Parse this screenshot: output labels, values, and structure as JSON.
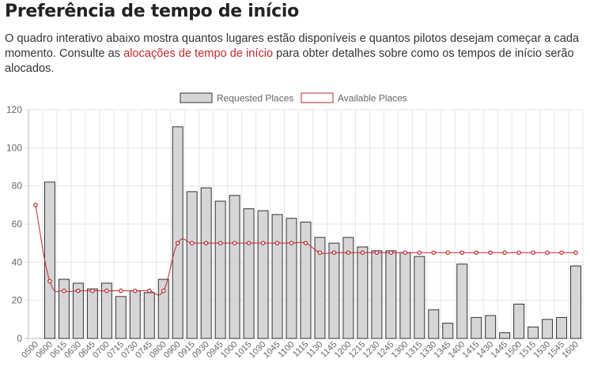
{
  "page": {
    "title": "Preferência de tempo de início",
    "intro_before": "O quadro interativo abaixo mostra quantos lugares estão disponíveis e quantos pilotos desejam começar a cada momento. Consulte as ",
    "intro_link": "alocações de tempo de início",
    "intro_after": " para obter detalhes sobre como os tempos de início serão alocados."
  },
  "colors": {
    "requested_fill": "#d6d6d8",
    "requested_stroke": "#333333",
    "available_line": "#c1272d",
    "grid": "#e6e6e6",
    "link": "#c1272d"
  },
  "chart_data": {
    "type": "bar",
    "legend": {
      "position": "top",
      "items": [
        {
          "label": "Requested Places",
          "style": "bar"
        },
        {
          "label": "Available Places",
          "style": "line"
        }
      ]
    },
    "categories": [
      "0500",
      "0600",
      "0615",
      "0630",
      "0645",
      "0700",
      "0715",
      "0730",
      "0745",
      "0800",
      "0900",
      "0915",
      "0930",
      "0945",
      "1000",
      "1015",
      "1030",
      "1045",
      "1100",
      "1115",
      "1130",
      "1145",
      "1200",
      "1215",
      "1230",
      "1245",
      "1300",
      "1315",
      "1330",
      "1345",
      "1400",
      "1415",
      "1430",
      "1445",
      "1500",
      "1515",
      "1530",
      "1545",
      "1600"
    ],
    "series": [
      {
        "name": "Requested Places",
        "type": "bar",
        "values": [
          0,
          82,
          31,
          29,
          26,
          29,
          22,
          25,
          24,
          31,
          111,
          77,
          79,
          72,
          75,
          68,
          67,
          65,
          63,
          61,
          53,
          50,
          53,
          48,
          46,
          46,
          45,
          43,
          15,
          8,
          39,
          11,
          12,
          3,
          18,
          6,
          10,
          11,
          38
        ]
      },
      {
        "name": "Available Places",
        "type": "line",
        "values": [
          70,
          30,
          25,
          25,
          25,
          25,
          25,
          25,
          25,
          25,
          50,
          50,
          50,
          50,
          50,
          50,
          50,
          50,
          50,
          50,
          45,
          45,
          45,
          45,
          45,
          45,
          45,
          45,
          45,
          45,
          45,
          45,
          45,
          45,
          45,
          45,
          45,
          45,
          45
        ]
      }
    ],
    "ylim": [
      0,
      120
    ],
    "yticks": [
      0,
      20,
      40,
      60,
      80,
      100,
      120
    ],
    "grid": true
  }
}
